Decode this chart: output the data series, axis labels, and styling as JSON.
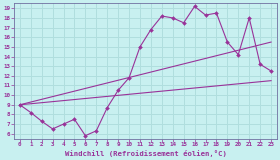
{
  "background_color": "#c8f0f0",
  "grid_color": "#b0dede",
  "line_color": "#993399",
  "xlabel": "Windchill (Refroidissement éolien,°C)",
  "xlim": [
    -0.5,
    23.5
  ],
  "ylim": [
    5.5,
    19.5
  ],
  "xticks": [
    0,
    1,
    2,
    3,
    4,
    5,
    6,
    7,
    8,
    9,
    10,
    11,
    12,
    13,
    14,
    15,
    16,
    17,
    18,
    19,
    20,
    21,
    22,
    23
  ],
  "yticks": [
    6,
    7,
    8,
    9,
    10,
    11,
    12,
    13,
    14,
    15,
    16,
    17,
    18,
    19
  ],
  "curve1_x": [
    0,
    1,
    2,
    3,
    4,
    5,
    6,
    7,
    8,
    9,
    10,
    11,
    12,
    13,
    14,
    15,
    16,
    17,
    18,
    19,
    20,
    21,
    22,
    23
  ],
  "curve1_y": [
    9.0,
    8.2,
    7.3,
    6.5,
    7.0,
    7.5,
    5.8,
    6.3,
    8.7,
    10.5,
    11.8,
    15.0,
    16.8,
    18.2,
    18.0,
    17.5,
    19.2,
    18.3,
    18.5,
    15.5,
    14.2,
    18.0,
    13.2,
    12.5
  ],
  "curve2_x": [
    0,
    23
  ],
  "curve2_y": [
    9.0,
    11.5
  ],
  "curve3_x": [
    0,
    23
  ],
  "curve3_y": [
    9.0,
    15.5
  ],
  "fig_width": 2.8,
  "fig_height": 1.6,
  "dpi": 100
}
